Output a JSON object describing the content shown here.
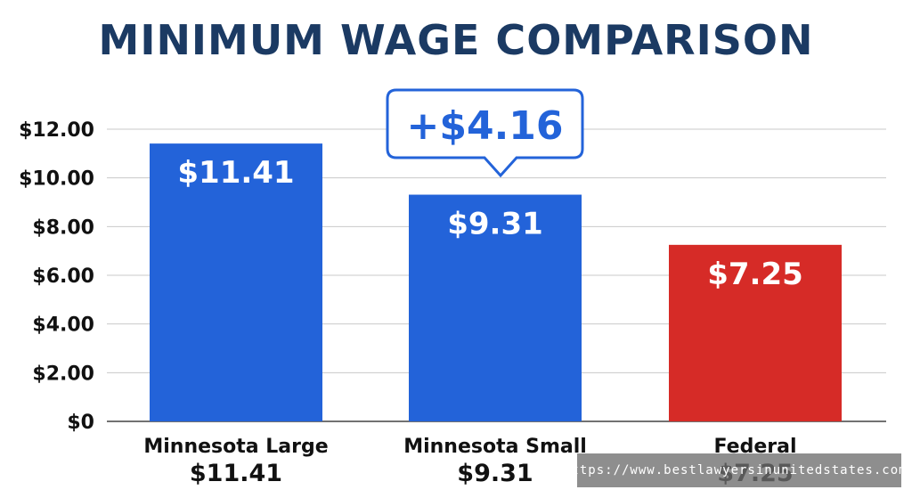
{
  "chart_data": {
    "type": "bar",
    "title": "MINIMUM WAGE COMPARISON",
    "categories": [
      "Minnesota Large",
      "Minnesota Small",
      "Federal"
    ],
    "values": [
      11.41,
      9.31,
      7.25
    ],
    "value_labels": [
      "$11.41",
      "$9.31",
      "$7.25"
    ],
    "bar_colors": [
      "#2363d9",
      "#2363d9",
      "#d62b27"
    ],
    "ylim": [
      0,
      12
    ],
    "yticks": [
      0,
      2,
      4,
      6,
      8,
      10,
      12
    ],
    "ytick_labels": [
      "$0",
      "$2.00",
      "$4.00",
      "$6.00",
      "$8.00",
      "$10.00",
      "$12.00"
    ],
    "grid": true,
    "callout": {
      "text": "+$4.16",
      "category_index": 1,
      "color": "#2363d9"
    }
  },
  "watermark": "https://www.bestlawyersinunitedstates.com/"
}
